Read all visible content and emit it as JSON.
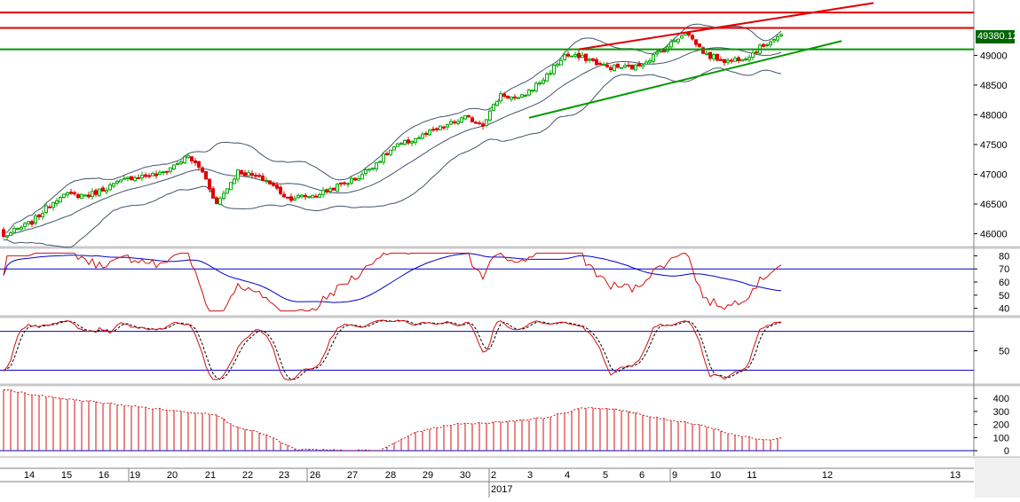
{
  "last_price_label": "49380.12",
  "colors": {
    "up": "#00aa00",
    "down": "#e00000",
    "band": "#44556a",
    "rsi_line": "#d01010",
    "rsi_avg": "#0000cc",
    "resistance": "#e00000",
    "support": "#009900",
    "grid_sep": "#c8c8c8",
    "price_tag": "#006600"
  },
  "chart_data": [
    {
      "type": "candlestick",
      "y_ticks": [
        "46000",
        "46500",
        "47000",
        "47500",
        "48000",
        "48500",
        "49000"
      ],
      "ylim": [
        45800,
        49900
      ],
      "bands": "bollinger",
      "candles_start": {
        "open": 46050,
        "close": 45900
      },
      "pattern_keypoints": [
        {
          "i": 0,
          "v": 45950
        },
        {
          "i": 8,
          "v": 46200
        },
        {
          "i": 16,
          "v": 46650
        },
        {
          "i": 24,
          "v": 46650
        },
        {
          "i": 30,
          "v": 46800
        },
        {
          "i": 36,
          "v": 46950
        },
        {
          "i": 44,
          "v": 47000
        },
        {
          "i": 52,
          "v": 47300
        },
        {
          "i": 56,
          "v": 47050
        },
        {
          "i": 60,
          "v": 46500
        },
        {
          "i": 66,
          "v": 47050
        },
        {
          "i": 74,
          "v": 46900
        },
        {
          "i": 80,
          "v": 46600
        },
        {
          "i": 88,
          "v": 46650
        },
        {
          "i": 94,
          "v": 46800
        },
        {
          "i": 100,
          "v": 46950
        },
        {
          "i": 110,
          "v": 47450
        },
        {
          "i": 120,
          "v": 47700
        },
        {
          "i": 130,
          "v": 47950
        },
        {
          "i": 135,
          "v": 47850
        },
        {
          "i": 140,
          "v": 48350
        },
        {
          "i": 145,
          "v": 48250
        },
        {
          "i": 152,
          "v": 48600
        },
        {
          "i": 158,
          "v": 49000
        },
        {
          "i": 164,
          "v": 48950
        },
        {
          "i": 170,
          "v": 48800
        },
        {
          "i": 178,
          "v": 48800
        },
        {
          "i": 186,
          "v": 49100
        },
        {
          "i": 192,
          "v": 49400
        },
        {
          "i": 198,
          "v": 49000
        },
        {
          "i": 204,
          "v": 48900
        },
        {
          "i": 210,
          "v": 49000
        },
        {
          "i": 216,
          "v": 49250
        },
        {
          "i": 220,
          "v": 49380
        }
      ],
      "horizontal_lines": [
        {
          "value": 49720,
          "color": "resistance"
        },
        {
          "value": 49460,
          "color": "resistance"
        },
        {
          "value": 49100,
          "color": "support"
        }
      ],
      "trend_lines": [
        {
          "from": {
            "i": 162,
            "v": 49100
          },
          "to": {
            "i": 245,
            "v": 49880
          },
          "color": "resistance"
        },
        {
          "from": {
            "i": 148,
            "v": 47950
          },
          "to": {
            "i": 236,
            "v": 49240
          },
          "color": "support"
        }
      ]
    },
    {
      "type": "line",
      "name_hint": "oscillator-1",
      "y_ticks": [
        "40",
        "50",
        "60",
        "70",
        "80"
      ],
      "ylim": [
        35,
        85
      ],
      "ref_line": 70
    },
    {
      "type": "line",
      "name_hint": "stochastic",
      "y_ticks": [
        "50"
      ],
      "ylim": [
        0,
        100
      ],
      "ref_lines": [
        80,
        20
      ]
    },
    {
      "type": "bar",
      "y_ticks": [
        "0",
        "100",
        "200",
        "300",
        "400"
      ],
      "ylim": [
        -40,
        490
      ],
      "keypoints": [
        {
          "i": 0,
          "v": 470
        },
        {
          "i": 10,
          "v": 420
        },
        {
          "i": 30,
          "v": 360
        },
        {
          "i": 50,
          "v": 300
        },
        {
          "i": 60,
          "v": 280
        },
        {
          "i": 64,
          "v": 200
        },
        {
          "i": 74,
          "v": 120
        },
        {
          "i": 82,
          "v": 10
        },
        {
          "i": 96,
          "v": 0
        },
        {
          "i": 106,
          "v": 0
        },
        {
          "i": 116,
          "v": 140
        },
        {
          "i": 126,
          "v": 200
        },
        {
          "i": 140,
          "v": 220
        },
        {
          "i": 152,
          "v": 250
        },
        {
          "i": 164,
          "v": 330
        },
        {
          "i": 172,
          "v": 320
        },
        {
          "i": 182,
          "v": 260
        },
        {
          "i": 196,
          "v": 200
        },
        {
          "i": 206,
          "v": 120
        },
        {
          "i": 214,
          "v": 80
        },
        {
          "i": 220,
          "v": 100
        }
      ]
    }
  ],
  "x_axis": {
    "labels": [
      "14",
      "15",
      "16",
      "19",
      "20",
      "21",
      "22",
      "23",
      "26",
      "27",
      "28",
      "29",
      "30",
      "2",
      "3",
      "4",
      "5",
      "6",
      "9",
      "10",
      "11",
      "12",
      "13"
    ],
    "year_label": "2017"
  }
}
